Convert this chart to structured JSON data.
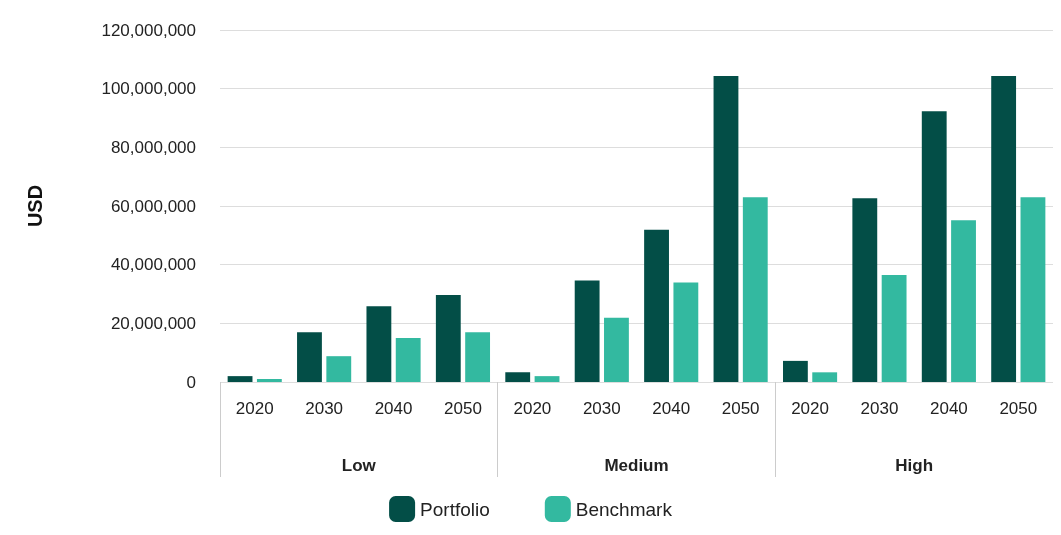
{
  "chart_data": {
    "type": "bar",
    "ylabel": "USD",
    "categories": [
      "2020",
      "2030",
      "2040",
      "2050",
      "2020",
      "2030",
      "2040",
      "2050",
      "2020",
      "2030",
      "2040",
      "2050"
    ],
    "series": [
      {
        "name": "Portfolio",
        "color": "#034e47",
        "values": [
          2000000,
          17000000,
          25800000,
          29700000,
          3300000,
          34600000,
          51900000,
          104300000,
          7200000,
          62600000,
          92300000,
          104300000
        ]
      },
      {
        "name": "Benchmark",
        "color": "#33b9a0",
        "values": [
          1000000,
          8800000,
          15000000,
          17000000,
          2000000,
          21900000,
          33900000,
          63000000,
          3300000,
          36500000,
          55100000,
          63000000
        ]
      }
    ],
    "annotations": [
      "Low",
      "Medium",
      "High"
    ],
    "ylim": [
      0,
      120000000
    ],
    "yticks": [
      0,
      {
        "value": 20000000,
        "label": "20,000,000"
      },
      {
        "value": 40000000,
        "label": "40,000,000"
      },
      {
        "value": 60000000,
        "label": "60,000,000"
      },
      {
        "value": 80000000,
        "label": "80,000,000"
      },
      {
        "value": 100000000,
        "label": "100,000,000"
      },
      {
        "value": 120000000,
        "label": "120,000,000"
      }
    ],
    "grid": "y",
    "legend": "bottom"
  }
}
